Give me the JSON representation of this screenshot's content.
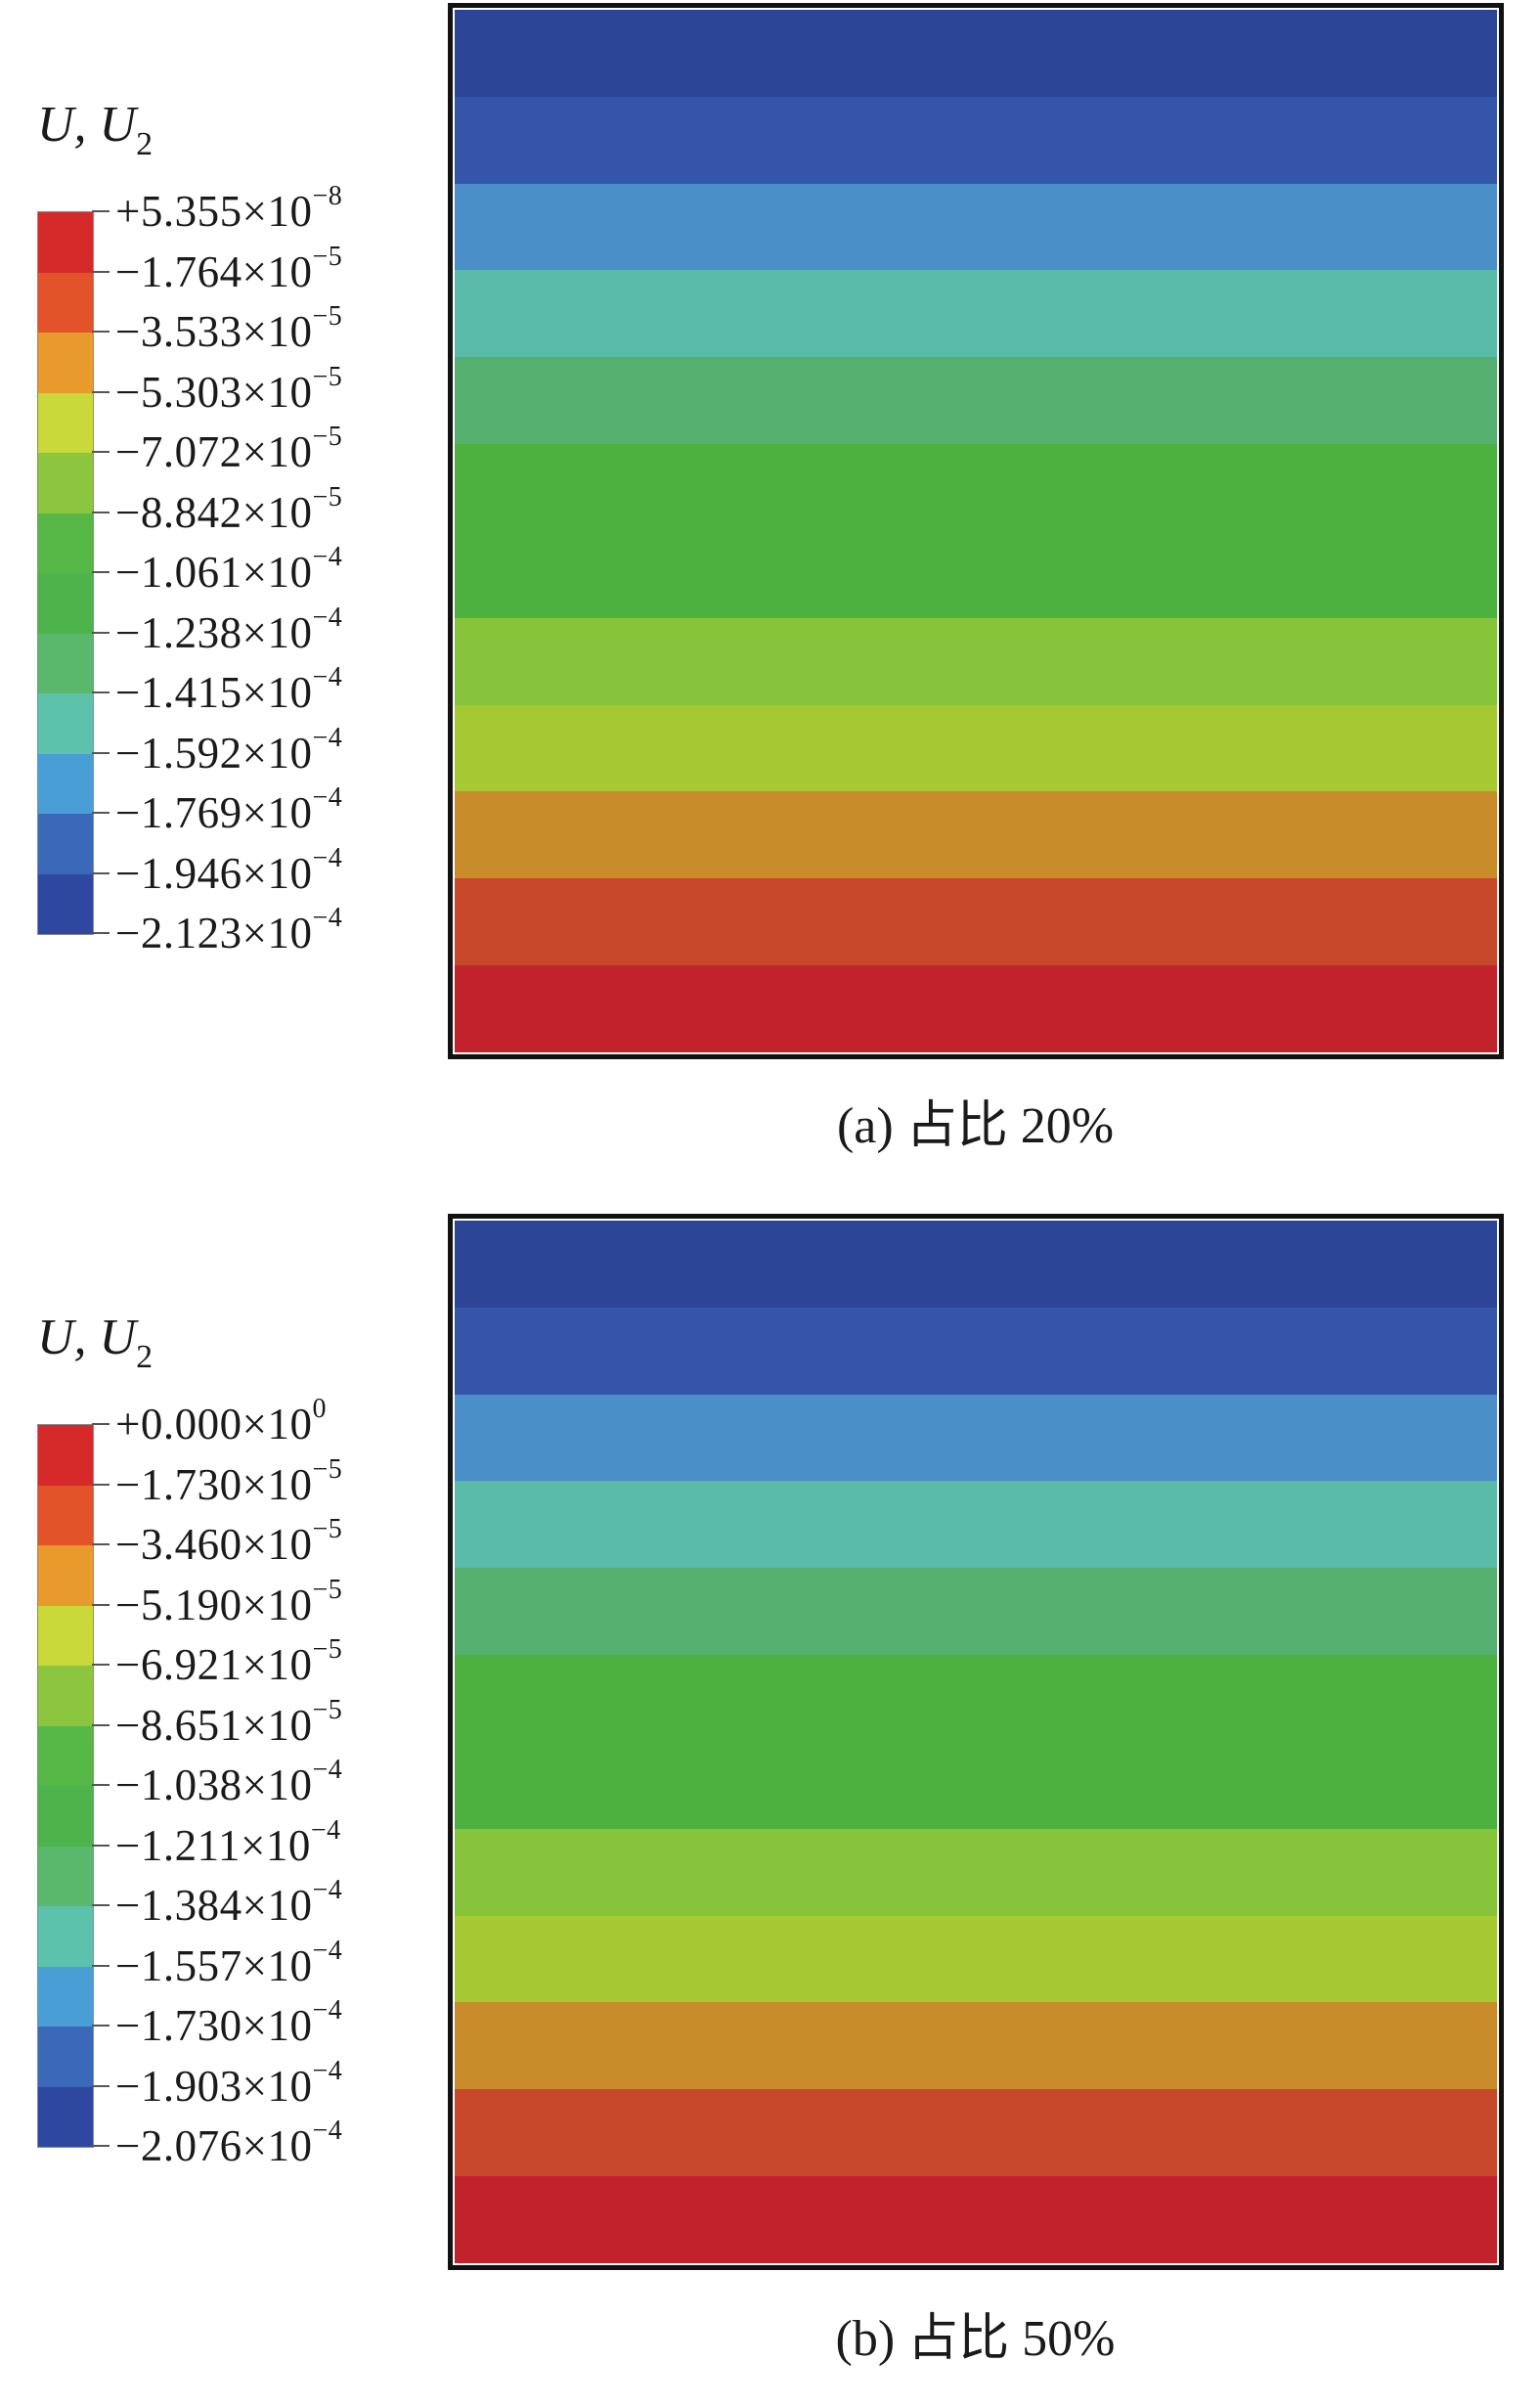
{
  "figure": [
    {
      "id": "a",
      "legend_title": "U, U",
      "legend_subscript": "2",
      "legend_values": [
        {
          "mant": "+5.355×10",
          "exp": "−8"
        },
        {
          "mant": "−1.764×10",
          "exp": "−5"
        },
        {
          "mant": "−3.533×10",
          "exp": "−5"
        },
        {
          "mant": "−5.303×10",
          "exp": "−5"
        },
        {
          "mant": "−7.072×10",
          "exp": "−5"
        },
        {
          "mant": "−8.842×10",
          "exp": "−5"
        },
        {
          "mant": "−1.061×10",
          "exp": "−4"
        },
        {
          "mant": "−1.238×10",
          "exp": "−4"
        },
        {
          "mant": "−1.415×10",
          "exp": "−4"
        },
        {
          "mant": "−1.592×10",
          "exp": "−4"
        },
        {
          "mant": "−1.769×10",
          "exp": "−4"
        },
        {
          "mant": "−1.946×10",
          "exp": "−4"
        },
        {
          "mant": "−2.123×10",
          "exp": "−4"
        }
      ],
      "caption": "(a) 占比 20%"
    },
    {
      "id": "b",
      "legend_title": "U, U",
      "legend_subscript": "2",
      "legend_values": [
        {
          "mant": "+0.000×10",
          "exp": "0"
        },
        {
          "mant": "−1.730×10",
          "exp": "−5"
        },
        {
          "mant": "−3.460×10",
          "exp": "−5"
        },
        {
          "mant": "−5.190×10",
          "exp": "−5"
        },
        {
          "mant": "−6.921×10",
          "exp": "−5"
        },
        {
          "mant": "−8.651×10",
          "exp": "−5"
        },
        {
          "mant": "−1.038×10",
          "exp": "−4"
        },
        {
          "mant": "−1.211×10",
          "exp": "−4"
        },
        {
          "mant": "−1.384×10",
          "exp": "−4"
        },
        {
          "mant": "−1.557×10",
          "exp": "−4"
        },
        {
          "mant": "−1.730×10",
          "exp": "−4"
        },
        {
          "mant": "−1.903×10",
          "exp": "−4"
        },
        {
          "mant": "−2.076×10",
          "exp": "−4"
        }
      ],
      "caption": "(b) 占比 50%"
    }
  ],
  "colormap": [
    "#d62a2a",
    "#e2532a",
    "#e89a2c",
    "#c9d93a",
    "#8cc63e",
    "#56b646",
    "#4cb44a",
    "#5ab86c",
    "#5cc2ac",
    "#4a9ed6",
    "#3c68b8",
    "#2e48a0"
  ],
  "contour_bands": [
    "#2c4597",
    "#3555a8",
    "#4a8fc8",
    "#5abba8",
    "#55b070",
    "#4cb13e",
    "#4cb13e",
    "#87c43c",
    "#a6c833",
    "#c98c2b",
    "#c7482a",
    "#c1222c"
  ]
}
